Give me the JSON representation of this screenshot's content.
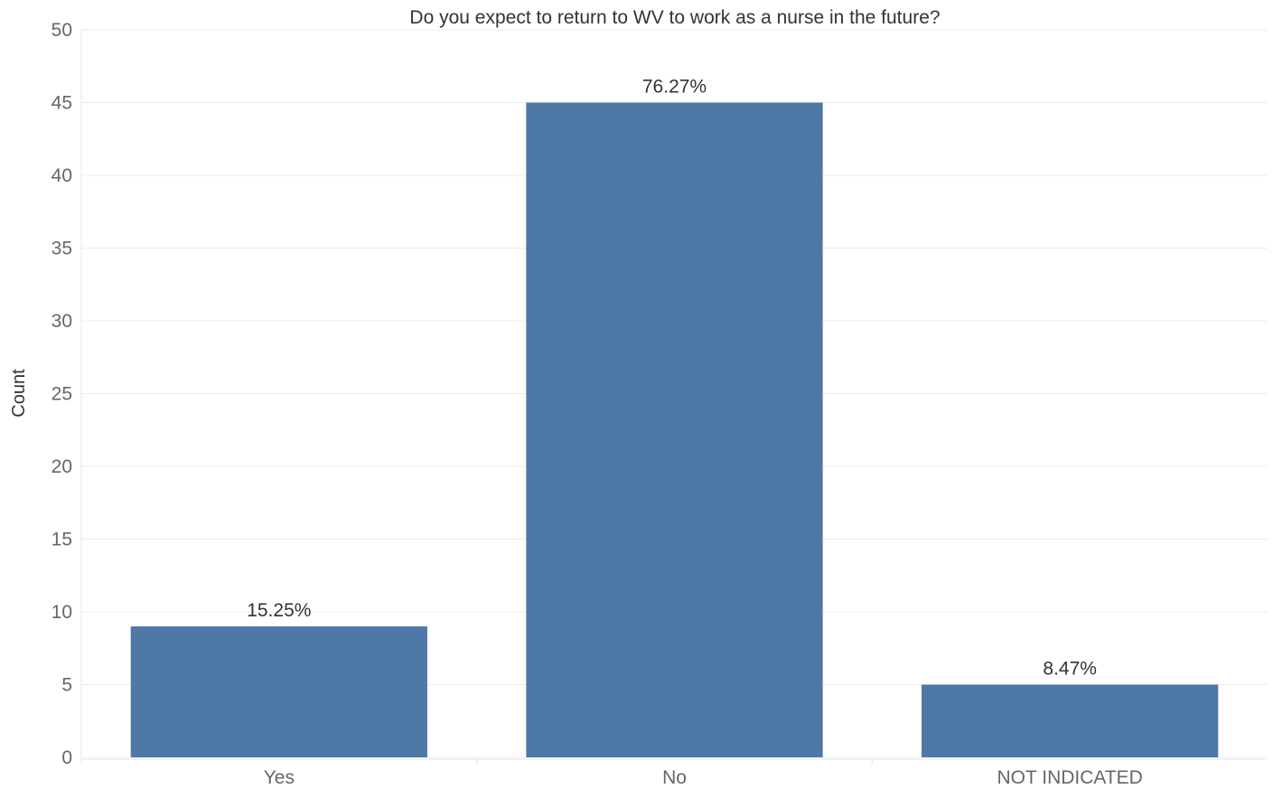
{
  "chart_data": {
    "type": "bar",
    "title": "Do you expect to return to WV to work as a nurse in the future?",
    "xlabel": "",
    "ylabel": "Count",
    "categories": [
      "Yes",
      "No",
      "NOT INDICATED"
    ],
    "values": [
      9,
      45,
      5
    ],
    "data_labels": [
      "15.25%",
      "76.27%",
      "8.47%"
    ],
    "yticks": [
      0,
      5,
      10,
      15,
      20,
      25,
      30,
      35,
      40,
      45,
      50
    ],
    "ylim": [
      0,
      50
    ],
    "grid": true,
    "colors": {
      "bar": "#4e79a7",
      "grid": "#ececec"
    }
  }
}
